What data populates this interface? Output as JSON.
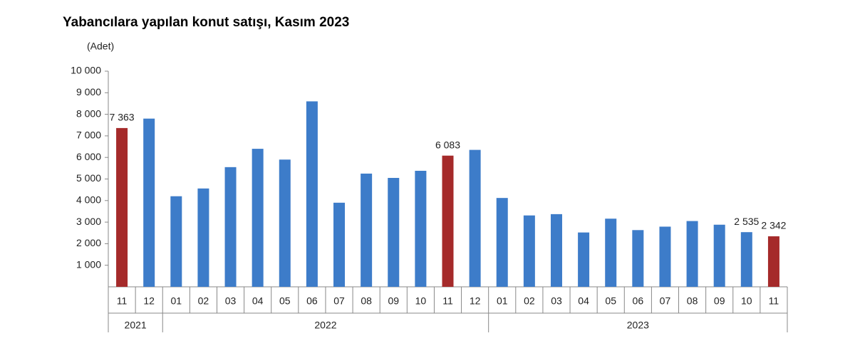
{
  "chart_data": {
    "type": "bar",
    "title": "Yabancılara yapılan konut satışı, Kasım 2023",
    "y_label": "(Adet)",
    "groups": [
      {
        "label": "2021",
        "categories": [
          "11",
          "12"
        ]
      },
      {
        "label": "2022",
        "categories": [
          "01",
          "02",
          "03",
          "04",
          "05",
          "06",
          "07",
          "08",
          "09",
          "10",
          "11",
          "12"
        ]
      },
      {
        "label": "2023",
        "categories": [
          "01",
          "02",
          "03",
          "04",
          "05",
          "06",
          "07",
          "08",
          "09",
          "10",
          "11"
        ]
      }
    ],
    "values": [
      7363,
      7800,
      4200,
      4560,
      5550,
      6400,
      5900,
      8600,
      3900,
      5250,
      5050,
      5380,
      6083,
      6350,
      4120,
      3310,
      3370,
      2520,
      3160,
      2630,
      2790,
      3050,
      2880,
      2535,
      2342
    ],
    "value_labels": [
      "7 363",
      null,
      null,
      null,
      null,
      null,
      null,
      null,
      null,
      null,
      null,
      null,
      "6 083",
      null,
      null,
      null,
      null,
      null,
      null,
      null,
      null,
      null,
      null,
      "2 535",
      "2 342"
    ],
    "colors": [
      "#a52a2a",
      "#3d7cc9",
      "#3d7cc9",
      "#3d7cc9",
      "#3d7cc9",
      "#3d7cc9",
      "#3d7cc9",
      "#3d7cc9",
      "#3d7cc9",
      "#3d7cc9",
      "#3d7cc9",
      "#3d7cc9",
      "#a52a2a",
      "#3d7cc9",
      "#3d7cc9",
      "#3d7cc9",
      "#3d7cc9",
      "#3d7cc9",
      "#3d7cc9",
      "#3d7cc9",
      "#3d7cc9",
      "#3d7cc9",
      "#3d7cc9",
      "#3d7cc9",
      "#a52a2a"
    ],
    "ylim": [
      0,
      10000
    ],
    "yticks": [
      {
        "value": 1000,
        "label": "1 000"
      },
      {
        "value": 2000,
        "label": "2 000"
      },
      {
        "value": 3000,
        "label": "3 000"
      },
      {
        "value": 4000,
        "label": "4 000"
      },
      {
        "value": 5000,
        "label": "5 000"
      },
      {
        "value": 6000,
        "label": "6 000"
      },
      {
        "value": 7000,
        "label": "7 000"
      },
      {
        "value": 8000,
        "label": "8 000"
      },
      {
        "value": 9000,
        "label": "9 000"
      },
      {
        "value": 10000,
        "label": "10 000"
      }
    ],
    "grid": false
  }
}
